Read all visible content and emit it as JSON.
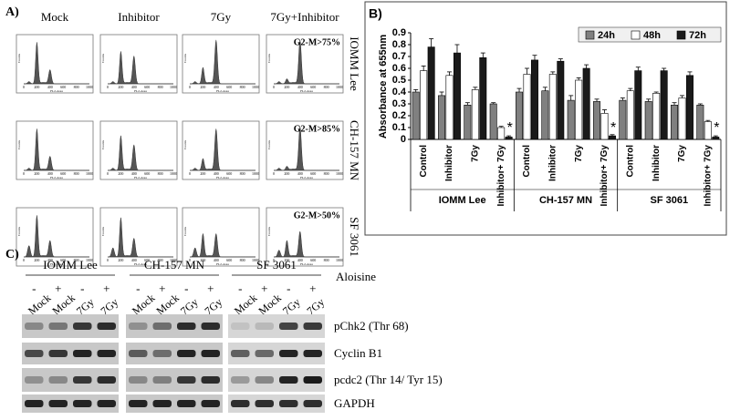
{
  "panel_a": {
    "label": "A)",
    "columns": [
      "Mock",
      "Inhibitor",
      "7Gy",
      "7Gy+Inhibitor"
    ],
    "rows": [
      "IOMM Lee",
      "CH-157 MN",
      "SF 3061"
    ],
    "annotations": [
      "G2-M>75%",
      "G2-M>85%",
      "G2-M>50%"
    ],
    "x_axis_label": "FL2-Area",
    "y_axis_label": "Counts",
    "x_tick_labels": [
      "0",
      "200",
      "400",
      "600",
      "800",
      "1000"
    ]
  },
  "chart_data": {
    "type": "bar",
    "label": "B)",
    "y_label": "Absorbance at 655nm",
    "categories": [
      "Control",
      "Inhibitor",
      "7Gy",
      "Inhibitor+ 7Gy",
      "Control",
      "Inhibitor",
      "7Gy",
      "Inhibitor+ 7Gy",
      "Control",
      "Inhibitor",
      "7Gy",
      "Inhibitor+ 7Gy"
    ],
    "groups": [
      "IOMM Lee",
      "CH-157 MN",
      "SF 3061"
    ],
    "series": [
      {
        "name": "24h",
        "color": "#808080",
        "values": [
          0.4,
          0.37,
          0.29,
          0.3,
          0.4,
          0.41,
          0.33,
          0.32,
          0.33,
          0.32,
          0.29,
          0.29
        ],
        "errors": [
          0.02,
          0.03,
          0.02,
          0.01,
          0.03,
          0.03,
          0.04,
          0.02,
          0.02,
          0.02,
          0.02,
          0.01
        ]
      },
      {
        "name": "48h",
        "color": "#ffffff",
        "values": [
          0.58,
          0.54,
          0.42,
          0.1,
          0.55,
          0.55,
          0.5,
          0.22,
          0.41,
          0.39,
          0.35,
          0.15
        ],
        "errors": [
          0.04,
          0.03,
          0.02,
          0.01,
          0.05,
          0.02,
          0.02,
          0.03,
          0.02,
          0.01,
          0.02,
          0.01
        ]
      },
      {
        "name": "72h",
        "color": "#1a1a1a",
        "values": [
          0.78,
          0.73,
          0.69,
          0.02,
          0.67,
          0.66,
          0.6,
          0.03,
          0.58,
          0.58,
          0.54,
          0.02
        ],
        "errors": [
          0.07,
          0.07,
          0.04,
          0.01,
          0.04,
          0.02,
          0.03,
          0.01,
          0.03,
          0.02,
          0.03,
          0.01
        ]
      }
    ],
    "significance_marks": [
      "*",
      "*",
      "*"
    ],
    "ylim": [
      0,
      0.9
    ],
    "yticks": [
      0,
      0.1,
      0.2,
      0.3,
      0.4,
      0.5,
      0.6,
      0.7,
      0.8,
      0.9
    ],
    "legend": "top-right",
    "grid": false
  },
  "panel_c": {
    "label": "C)",
    "groups": [
      "IOMM Lee",
      "CH-157 MN",
      "SF 3061"
    ],
    "treatment": "Aloisine",
    "signs": [
      "-",
      "+",
      "-",
      "+"
    ],
    "lanes": [
      "Mock",
      "Mock",
      "7Gy",
      "7Gy"
    ],
    "proteins": [
      "pChk2 (Thr 68)",
      "Cyclin B1",
      "pcdc2 (Thr 14/ Tyr 15)",
      "GAPDH"
    ]
  }
}
